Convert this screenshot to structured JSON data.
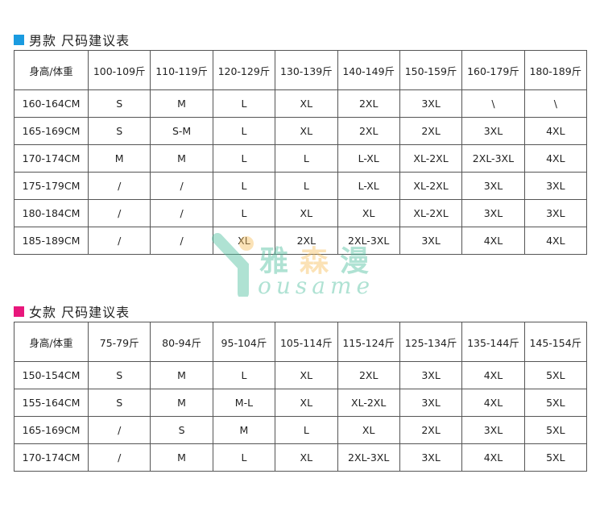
{
  "men": {
    "title": "男款  尺码建议表",
    "accent": "#1a9be0",
    "header": [
      "身高/体重",
      "100-109斤",
      "110-119斤",
      "120-129斤",
      "130-139斤",
      "140-149斤",
      "150-159斤",
      "160-179斤",
      "180-189斤"
    ],
    "rows": [
      [
        "160-164CM",
        "S",
        "M",
        "L",
        "XL",
        "2XL",
        "3XL",
        "\\",
        "\\"
      ],
      [
        "165-169CM",
        "S",
        "S-M",
        "L",
        "XL",
        "2XL",
        "2XL",
        "3XL",
        "4XL"
      ],
      [
        "170-174CM",
        "M",
        "M",
        "L",
        "L",
        "L-XL",
        "XL-2XL",
        "2XL-3XL",
        "4XL"
      ],
      [
        "175-179CM",
        "/",
        "/",
        "L",
        "L",
        "L-XL",
        "XL-2XL",
        "3XL",
        "3XL"
      ],
      [
        "180-184CM",
        "/",
        "/",
        "L",
        "XL",
        "XL",
        "XL-2XL",
        "3XL",
        "3XL"
      ],
      [
        "185-189CM",
        "/",
        "/",
        "XL",
        "2XL",
        "2XL-3XL",
        "3XL",
        "4XL",
        "4XL"
      ]
    ]
  },
  "women": {
    "title": "女款  尺码建议表",
    "accent": "#e8177c",
    "header": [
      "身高/体重",
      "75-79斤",
      "80-94斤",
      "95-104斤",
      "105-114斤",
      "115-124斤",
      "125-134斤",
      "135-144斤",
      "145-154斤"
    ],
    "rows": [
      [
        "150-154CM",
        "S",
        "M",
        "L",
        "XL",
        "2XL",
        "3XL",
        "4XL",
        "5XL"
      ],
      [
        "155-164CM",
        "S",
        "M",
        "M-L",
        "XL",
        "XL-2XL",
        "3XL",
        "4XL",
        "5XL"
      ],
      [
        "165-169CM",
        "/",
        "S",
        "M",
        "L",
        "XL",
        "2XL",
        "3XL",
        "5XL"
      ],
      [
        "170-174CM",
        "/",
        "M",
        "L",
        "XL",
        "2XL-3XL",
        "3XL",
        "4XL",
        "5XL"
      ]
    ]
  },
  "watermark": {
    "cn": "雅森漫",
    "en": "ousame"
  }
}
